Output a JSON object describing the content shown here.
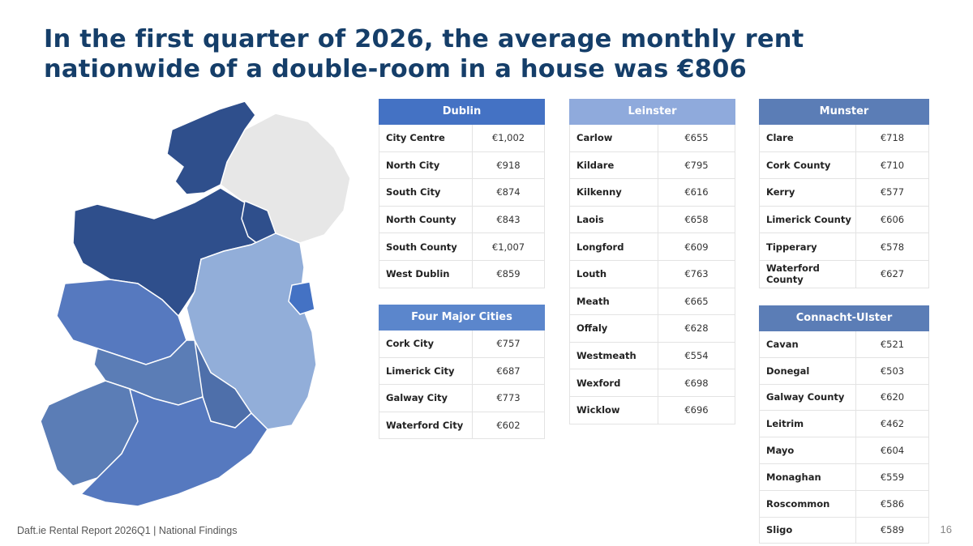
{
  "title": "In the first quarter of 2026, the average monthly rent nationwide of a double-room in a house was €806",
  "footer": "Daft.ie Rental Report 2026Q1 | National Findings",
  "page_number": "16",
  "colors": {
    "title": "#153E69",
    "dublin_header": "#4472C4",
    "leinster_header": "#8FAADC",
    "munster_header": "#5B7DB6",
    "cities_header": "#5B86CC",
    "connacht_header": "#5B7DB6",
    "map_dark": "#2F4F8C",
    "map_mid": "#5679BF",
    "map_light": "#92AED9",
    "map_grey": "#E7E7E7"
  },
  "tables": {
    "dublin": {
      "header": "Dublin",
      "rows": [
        {
          "name": "City Centre",
          "value": "€1,002"
        },
        {
          "name": "North City",
          "value": "€918"
        },
        {
          "name": "South City",
          "value": "€874"
        },
        {
          "name": "North County",
          "value": "€843"
        },
        {
          "name": "South County",
          "value": "€1,007"
        },
        {
          "name": "West Dublin",
          "value": "€859"
        }
      ]
    },
    "cities": {
      "header": "Four Major Cities",
      "rows": [
        {
          "name": "Cork City",
          "value": "€757"
        },
        {
          "name": "Limerick City",
          "value": "€687"
        },
        {
          "name": "Galway City",
          "value": "€773"
        },
        {
          "name": "Waterford City",
          "value": "€602"
        }
      ]
    },
    "leinster": {
      "header": "Leinster",
      "rows": [
        {
          "name": "Carlow",
          "value": "€655"
        },
        {
          "name": "Kildare",
          "value": "€795"
        },
        {
          "name": "Kilkenny",
          "value": "€616"
        },
        {
          "name": "Laois",
          "value": "€658"
        },
        {
          "name": "Longford",
          "value": "€609"
        },
        {
          "name": "Louth",
          "value": "€763"
        },
        {
          "name": "Meath",
          "value": "€665"
        },
        {
          "name": "Offaly",
          "value": "€628"
        },
        {
          "name": "Westmeath",
          "value": "€554"
        },
        {
          "name": "Wexford",
          "value": "€698"
        },
        {
          "name": "Wicklow",
          "value": "€696"
        }
      ]
    },
    "munster": {
      "header": "Munster",
      "rows": [
        {
          "name": "Clare",
          "value": "€718"
        },
        {
          "name": "Cork County",
          "value": "€710"
        },
        {
          "name": "Kerry",
          "value": "€577"
        },
        {
          "name": "Limerick County",
          "value": "€606"
        },
        {
          "name": "Tipperary",
          "value": "€578"
        },
        {
          "name": "Waterford County",
          "value": "€627"
        }
      ]
    },
    "connacht_ulster": {
      "header": "Connacht-Ulster",
      "rows": [
        {
          "name": "Cavan",
          "value": "€521"
        },
        {
          "name": "Donegal",
          "value": "€503"
        },
        {
          "name": "Galway County",
          "value": "€620"
        },
        {
          "name": "Leitrim",
          "value": "€462"
        },
        {
          "name": "Mayo",
          "value": "€604"
        },
        {
          "name": "Monaghan",
          "value": "€559"
        },
        {
          "name": "Roscommon",
          "value": "€586"
        },
        {
          "name": "Sligo",
          "value": "€589"
        }
      ]
    }
  }
}
